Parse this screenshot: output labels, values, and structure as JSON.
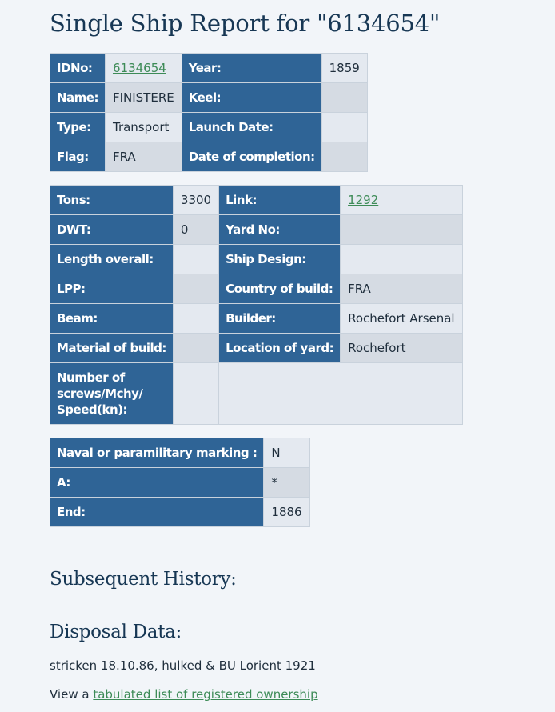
{
  "title": "Single Ship Report for \"6134654\"",
  "basic": {
    "idno_label": "IDNo:",
    "idno": "6134654",
    "year_label": "Year:",
    "year": "1859",
    "name_label": "Name:",
    "name": "FINISTERE",
    "keel_label": "Keel:",
    "keel": "",
    "type_label": "Type:",
    "type": "Transport",
    "launch_label": "Launch Date:",
    "launch": "",
    "flag_label": "Flag:",
    "flag": "FRA",
    "completion_label": "Date of completion:",
    "completion": ""
  },
  "specs": {
    "tons_label": "Tons:",
    "tons": "3300",
    "link_label": "Link:",
    "link": "1292",
    "dwt_label": "DWT:",
    "dwt": "0",
    "yard_no_label": "Yard No:",
    "yard_no": "",
    "length_label": "Length overall:",
    "length": "",
    "design_label": "Ship Design:",
    "design": "",
    "lpp_label": "LPP:",
    "lpp": "",
    "country_label": "Country of build:",
    "country": "FRA",
    "beam_label": "Beam:",
    "beam": "",
    "builder_label": "Builder:",
    "builder": "Rochefort Arsenal",
    "material_label": "Material of build:",
    "material": "",
    "location_label": "Location of yard:",
    "location": "Rochefort",
    "screws_label": "Number of screws/Mchy/ Speed(kn):",
    "screws": ""
  },
  "marking": {
    "naval_label": "Naval or paramilitary marking :",
    "naval": "N",
    "a_label": "A:",
    "a": "*",
    "end_label": "End:",
    "end": "1886"
  },
  "subsequent_history_heading": "Subsequent History:",
  "disposal_heading": "Disposal Data:",
  "disposal_text": "stricken 18.10.86, hulked & BU Lorient 1921",
  "view_prefix": "View a ",
  "view_link": "tabulated list of registered ownership"
}
